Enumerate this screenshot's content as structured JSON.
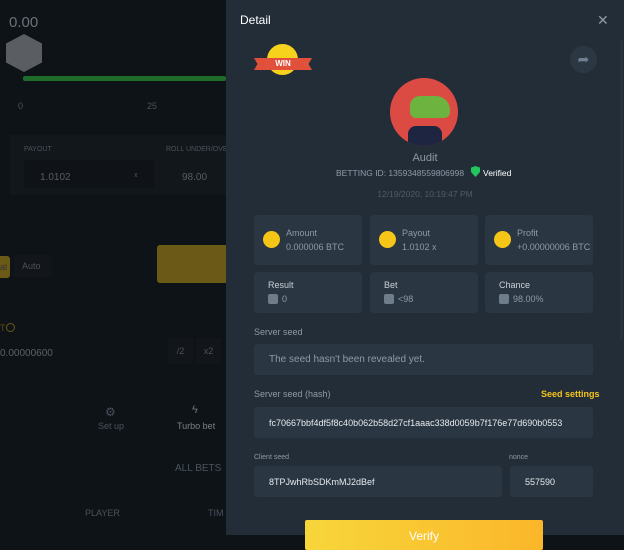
{
  "background": {
    "balance": "0.00",
    "slider_ticks": [
      "0",
      "25"
    ],
    "payout_label": "PAYOUT",
    "payout_value": "1.0102",
    "payout_suffix": "x",
    "roll_label": "ROLL UNDER/OVER",
    "roll_value": "98.00",
    "manual_tab": "al",
    "auto_tab": "Auto",
    "bet_label": "T",
    "bet_amount": "0.00000600",
    "half": "/2",
    "double": "x2",
    "setup": "Set up",
    "turbo": "Turbo bet",
    "all_bets": "ALL BETS",
    "col_player": "PLAYER",
    "col_time": "TIM"
  },
  "detail": {
    "title": "Detail",
    "win_badge": "WIN",
    "user": "Audit",
    "betting_id": "BETTING ID: 1359348559806998",
    "verified": "Verified",
    "timestamp": "12/19/2020, 10:19:47 PM",
    "stats": [
      {
        "label": "Amount",
        "value": "0.000006 BTC",
        "icon": "hand-coin-icon"
      },
      {
        "label": "Payout",
        "value": "1.0102 x",
        "icon": "coin-stack-icon"
      },
      {
        "label": "Profit",
        "value": "+0.00000006 BTC",
        "icon": "money-bag-icon"
      },
      {
        "label": "Result",
        "value": "0",
        "icon": "dice-icon"
      },
      {
        "label": "Bet",
        "value": "<98",
        "icon": "cube-icon"
      },
      {
        "label": "Chance",
        "value": "98.00%",
        "icon": "dice-icon"
      }
    ],
    "server_seed_label": "Server seed",
    "server_seed_value": "The seed hasn't been revealed yet.",
    "hash_label": "Server seed (hash)",
    "seed_settings": "Seed settings",
    "hash_value": "fc70667bbf4df5f8c40b062b58d27cf1aaac338d0059b7f176e77d690b0553",
    "client_seed_label": "Client seed",
    "client_seed_value": "8TPJwhRbSDKmMJ2dBef",
    "nonce_label": "nonce",
    "nonce_value": "557590",
    "verify": "Verify"
  },
  "colors": {
    "accent": "#f5c518",
    "verified": "#22c55e",
    "panel": "#222d38",
    "card": "#2a3642"
  }
}
